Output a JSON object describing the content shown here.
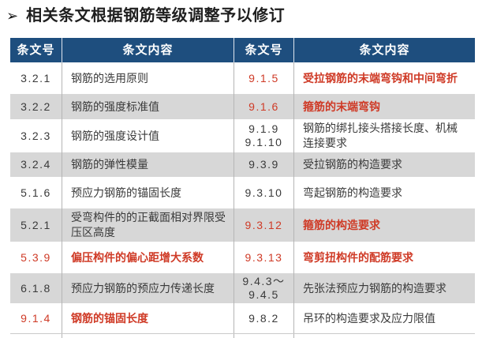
{
  "title": {
    "bullet": "➢",
    "text": "相关条文根据钢筋等级调整予以修订"
  },
  "table": {
    "headers": [
      "条文号",
      "条文内容",
      "条文号",
      "条文内容"
    ],
    "rows": [
      {
        "no_l": "3.2.1",
        "text_l": "钢筋的选用原则",
        "no_r": "9.1.5",
        "text_r": "受拉钢筋的末端弯钩和中间弯折"
      },
      {
        "no_l": "3.2.2",
        "text_l": "钢筋的强度标准值",
        "no_r": "9.1.6",
        "text_r": "箍筋的末端弯钩"
      },
      {
        "no_l": "3.2.3",
        "text_l": "钢筋的强度设计值",
        "no_r": "9.1.9\n9.1.10",
        "text_r": "钢筋的绑扎接头搭接长度、机械连接要求"
      },
      {
        "no_l": "3.2.4",
        "text_l": "钢筋的弹性模量",
        "no_r": "9.3.9",
        "text_r": "受拉钢筋的构造要求"
      },
      {
        "no_l": "5.1.6",
        "text_l": "预应力钢筋的锚固长度",
        "no_r": "9.3.10",
        "text_r": "弯起钢筋的构造要求"
      },
      {
        "no_l": "5.2.1",
        "text_l": "受弯构件的的正截面相对界限受压区高度",
        "no_r": "9.3.12",
        "text_r": "箍筋的构造要求"
      },
      {
        "no_l": "5.3.9",
        "text_l": "偏压构件的偏心距增大系数",
        "no_r": "9.3.13",
        "text_r": "弯剪扭构件的配筋要求"
      },
      {
        "no_l": "6.1.8",
        "text_l": "预应力钢筋的预应力传递长度",
        "no_r": "9.4.3～\n9.4.5",
        "text_r": "先张法预应力钢筋的构造要求"
      },
      {
        "no_l": "9.1.4",
        "text_l": "钢筋的锚固长度",
        "no_r": "9.8.2",
        "text_r": "吊环的构造要求及应力限值"
      }
    ]
  },
  "colors": {
    "header_bg": "#1E4E7E",
    "row_shaded": "#D7D7D7",
    "red_text": "#CF3A26",
    "title_text": "#1F1F1F"
  }
}
